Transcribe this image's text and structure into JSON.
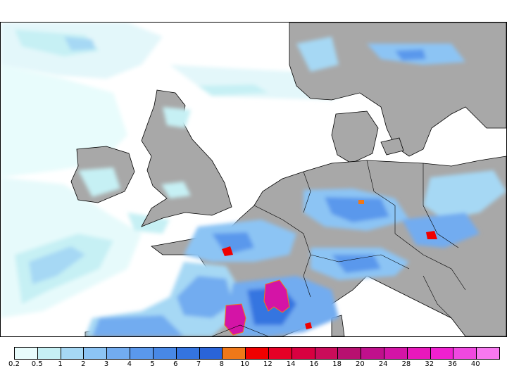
{
  "map": {
    "land_color": "#a8a8a8",
    "sea_color": "#ffffff",
    "coast_color": "#000000"
  },
  "legend": {
    "levels": [
      {
        "label": "0.2",
        "color": "#e8fcfc"
      },
      {
        "label": "0.5",
        "color": "#c6f0f4"
      },
      {
        "label": "1",
        "color": "#a6d8f4"
      },
      {
        "label": "2",
        "color": "#8cc4f4"
      },
      {
        "label": "3",
        "color": "#72acf0"
      },
      {
        "label": "4",
        "color": "#5a98ec"
      },
      {
        "label": "5",
        "color": "#4888e6"
      },
      {
        "label": "6",
        "color": "#3474e0"
      },
      {
        "label": "7",
        "color": "#2a64d8"
      },
      {
        "label": "8",
        "color": "#f07818"
      },
      {
        "label": "10",
        "color": "#f00000"
      },
      {
        "label": "12",
        "color": "#e60026"
      },
      {
        "label": "14",
        "color": "#d80040"
      },
      {
        "label": "16",
        "color": "#ca0c5a"
      },
      {
        "label": "18",
        "color": "#b81070"
      },
      {
        "label": "20",
        "color": "#c0108c"
      },
      {
        "label": "24",
        "color": "#d414a6"
      },
      {
        "label": "28",
        "color": "#e818bc"
      },
      {
        "label": "32",
        "color": "#f020d0"
      },
      {
        "label": "36",
        "color": "#f048e0"
      },
      {
        "label": "40",
        "color": "#f878f0"
      }
    ]
  }
}
